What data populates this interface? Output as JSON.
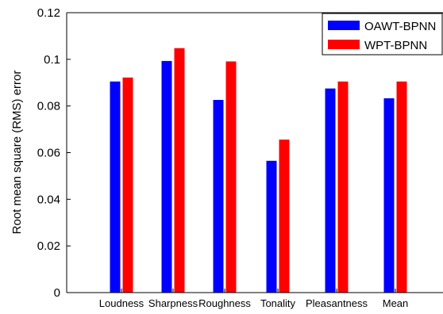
{
  "chart_data": {
    "type": "bar",
    "title": "",
    "xlabel": "",
    "ylabel": "Root mean square (RMS) error",
    "ylim": [
      0,
      0.12
    ],
    "yticks": [
      "0",
      "0.02",
      "0.04",
      "0.06",
      "0.08",
      "0.1",
      "0.12"
    ],
    "ytick_values": [
      0,
      0.02,
      0.04,
      0.06,
      0.08,
      0.1,
      0.12
    ],
    "categories": [
      "Loudness",
      "Sharpness",
      "Roughness",
      "Tonality",
      "Pleasantness",
      "Mean"
    ],
    "series": [
      {
        "name": "OAWT-BPNN",
        "color": "#0000ff",
        "values": [
          0.0905,
          0.0993,
          0.0826,
          0.0565,
          0.0875,
          0.0833
        ]
      },
      {
        "name": "WPT-BPNN",
        "color": "#ff0000",
        "values": [
          0.0922,
          0.1048,
          0.0991,
          0.0656,
          0.0905,
          0.0905
        ]
      }
    ],
    "grid": false,
    "legend_position": "top-right"
  }
}
